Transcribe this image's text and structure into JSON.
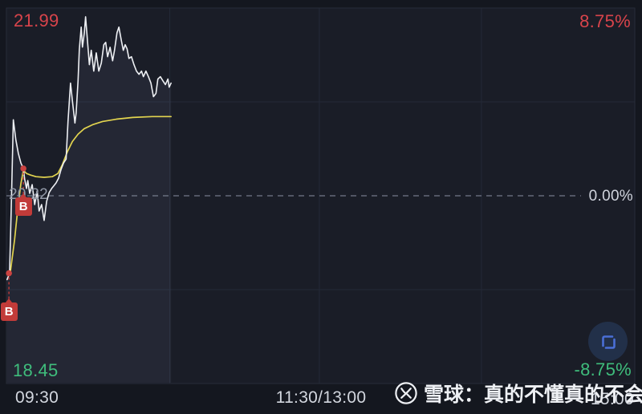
{
  "chart_data": {
    "type": "line",
    "title": "",
    "prev_close": 20.22,
    "limit_up_price": "21.99",
    "limit_down_price": "18.45",
    "limit_pct": 8.75,
    "ylim": [
      -8.75,
      8.75
    ],
    "grid": {
      "v_pos": [
        0.26,
        0.498,
        0.756
      ],
      "h_pct": [
        4.375,
        -4.375
      ],
      "zero_line_dashed": true
    },
    "y_ticks_left": [
      "21.99",
      "20.22",
      "18.45"
    ],
    "y_ticks_right": [
      "8.75%",
      "0.00%",
      "-8.75%"
    ],
    "x_ticks": [
      {
        "label": "09:30",
        "pos": 0
      },
      {
        "label": "11:30/13:00",
        "pos": 0.5
      },
      {
        "label": "15:00",
        "pos": 1
      }
    ],
    "series": [
      {
        "name": "price",
        "color": "#edeff3",
        "points": [
          [
            0.001,
            -3.91
          ],
          [
            0.005,
            -3.61
          ],
          [
            0.008,
            -0.19
          ],
          [
            0.011,
            3.54
          ],
          [
            0.015,
            2.61
          ],
          [
            0.019,
            1.97
          ],
          [
            0.023,
            1.53
          ],
          [
            0.027,
            1.27
          ],
          [
            0.029,
            0.78
          ],
          [
            0.032,
            0.34
          ],
          [
            0.034,
            0.71
          ],
          [
            0.037,
            0.11
          ],
          [
            0.041,
            0.52
          ],
          [
            0.045,
            -0.41
          ],
          [
            0.049,
            0.22
          ],
          [
            0.052,
            -0.71
          ],
          [
            0.056,
            -0.41
          ],
          [
            0.06,
            -1.15
          ],
          [
            0.064,
            -0.26
          ],
          [
            0.068,
            0.15
          ],
          [
            0.072,
            0.34
          ],
          [
            0.075,
            0.45
          ],
          [
            0.079,
            0.6
          ],
          [
            0.083,
            0.82
          ],
          [
            0.087,
            1.23
          ],
          [
            0.091,
            1.53
          ],
          [
            0.095,
            1.71
          ],
          [
            0.098,
            3.46
          ],
          [
            0.102,
            5.25
          ],
          [
            0.105,
            4.43
          ],
          [
            0.109,
            3.39
          ],
          [
            0.111,
            3.87
          ],
          [
            0.114,
            5.36
          ],
          [
            0.116,
            6.81
          ],
          [
            0.119,
            7.86
          ],
          [
            0.121,
            6.93
          ],
          [
            0.124,
            7.6
          ],
          [
            0.126,
            8.34
          ],
          [
            0.129,
            7.22
          ],
          [
            0.132,
            6.11
          ],
          [
            0.135,
            6.78
          ],
          [
            0.139,
            5.81
          ],
          [
            0.143,
            6.66
          ],
          [
            0.147,
            5.81
          ],
          [
            0.151,
            6.18
          ],
          [
            0.155,
            7.04
          ],
          [
            0.158,
            7.15
          ],
          [
            0.161,
            6.48
          ],
          [
            0.165,
            6.92
          ],
          [
            0.169,
            6.29
          ],
          [
            0.172,
            6.78
          ],
          [
            0.176,
            7.6
          ],
          [
            0.179,
            7.86
          ],
          [
            0.183,
            7.22
          ],
          [
            0.186,
            6.78
          ],
          [
            0.189,
            7.04
          ],
          [
            0.192,
            6.85
          ],
          [
            0.195,
            6.4
          ],
          [
            0.199,
            6.48
          ],
          [
            0.203,
            6.11
          ],
          [
            0.207,
            5.81
          ],
          [
            0.211,
            5.66
          ],
          [
            0.215,
            5.81
          ],
          [
            0.218,
            5.55
          ],
          [
            0.222,
            5.81
          ],
          [
            0.226,
            5.55
          ],
          [
            0.23,
            5.25
          ],
          [
            0.234,
            4.62
          ],
          [
            0.238,
            4.77
          ],
          [
            0.241,
            5.44
          ],
          [
            0.245,
            5.55
          ],
          [
            0.249,
            5.36
          ],
          [
            0.253,
            5.18
          ],
          [
            0.257,
            5.44
          ],
          [
            0.259,
            5.06
          ],
          [
            0.262,
            5.25
          ]
        ]
      },
      {
        "name": "avg_price",
        "color": "#e2d44f",
        "points": [
          [
            0.006,
            -3.61
          ],
          [
            0.013,
            -2.05
          ],
          [
            0.018,
            -0.63
          ],
          [
            0.023,
            0.56
          ],
          [
            0.027,
            1.19
          ],
          [
            0.032,
            1.04
          ],
          [
            0.038,
            0.97
          ],
          [
            0.047,
            0.89
          ],
          [
            0.06,
            0.86
          ],
          [
            0.073,
            0.89
          ],
          [
            0.082,
            1.04
          ],
          [
            0.089,
            1.45
          ],
          [
            0.097,
            2.05
          ],
          [
            0.105,
            2.53
          ],
          [
            0.114,
            2.87
          ],
          [
            0.124,
            3.13
          ],
          [
            0.137,
            3.31
          ],
          [
            0.153,
            3.46
          ],
          [
            0.175,
            3.57
          ],
          [
            0.201,
            3.65
          ],
          [
            0.232,
            3.69
          ],
          [
            0.262,
            3.69
          ]
        ]
      }
    ],
    "buy_markers": [
      {
        "pos": 0.004,
        "pct": -3.61
      },
      {
        "pos": 0.027,
        "pct": 1.27
      }
    ]
  },
  "markers": {
    "buy_label": "B"
  },
  "watermark": {
    "brand_icon": "xueqiu-logo-icon",
    "text": "雪球：真的不懂真的不会"
  },
  "controls": {
    "expand_icon": "expand-icon"
  },
  "colors": {
    "up": "#d8444b",
    "down": "#3fbd7c",
    "price_line": "#edeff3",
    "avg_line": "#e2d44f",
    "buy_marker": "#c23b39",
    "background": "#14171f",
    "grid": "#242937"
  }
}
